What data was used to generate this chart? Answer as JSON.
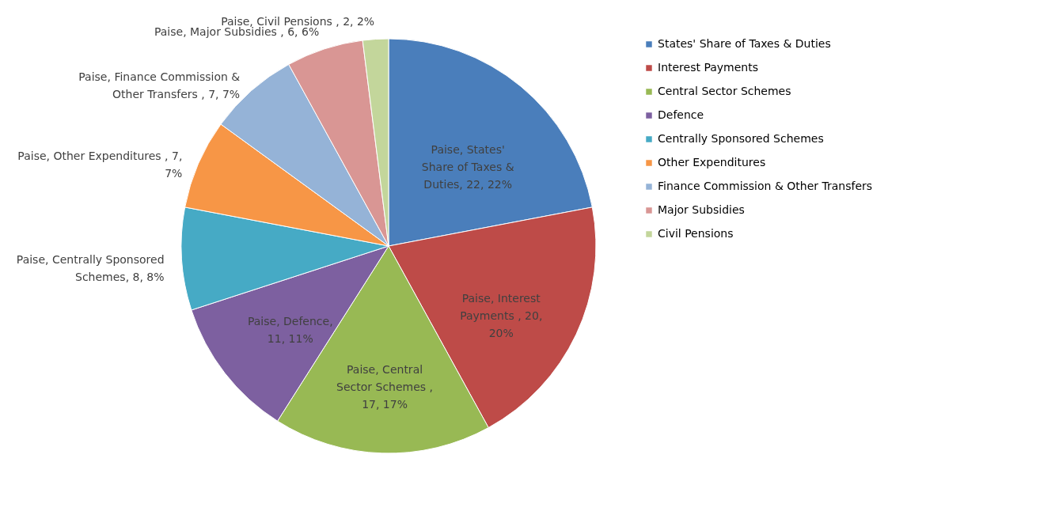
{
  "chart_data": {
    "type": "pie",
    "legend": "right",
    "categories": [
      "States' Share of Taxes & Duties",
      "Interest Payments",
      "Central Sector Schemes",
      "Defence",
      "Centrally Sponsored Schemes",
      "Other Expenditures",
      "Finance Commission & Other Transfers",
      "Major Subsidies",
      "Civil Pensions"
    ],
    "values": [
      22,
      20,
      17,
      11,
      8,
      7,
      7,
      6,
      2
    ],
    "colors": [
      "#4a7ebb",
      "#be4b48",
      "#98b954",
      "#7d60a0",
      "#46aac5",
      "#f79646",
      "#95b3d7",
      "#d99694",
      "#c3d69b"
    ],
    "value_labels": [
      "Paise, States' Share of Taxes & Duties, 22, 22%",
      "Paise, Interest Payments , 20, 20%",
      "Paise, Central Sector Schemes , 17, 17%",
      "Paise, Defence, 11, 11%",
      "Paise, Centrally Sponsored Schemes, 8, 8%",
      "Paise, Other Expenditures , 7, 7%",
      "Paise, Finance Commission & Other Transfers , 7, 7%",
      "Paise, Major Subsidies , 6, 6%",
      "Paise, Civil Pensions , 2, 2%"
    ]
  }
}
